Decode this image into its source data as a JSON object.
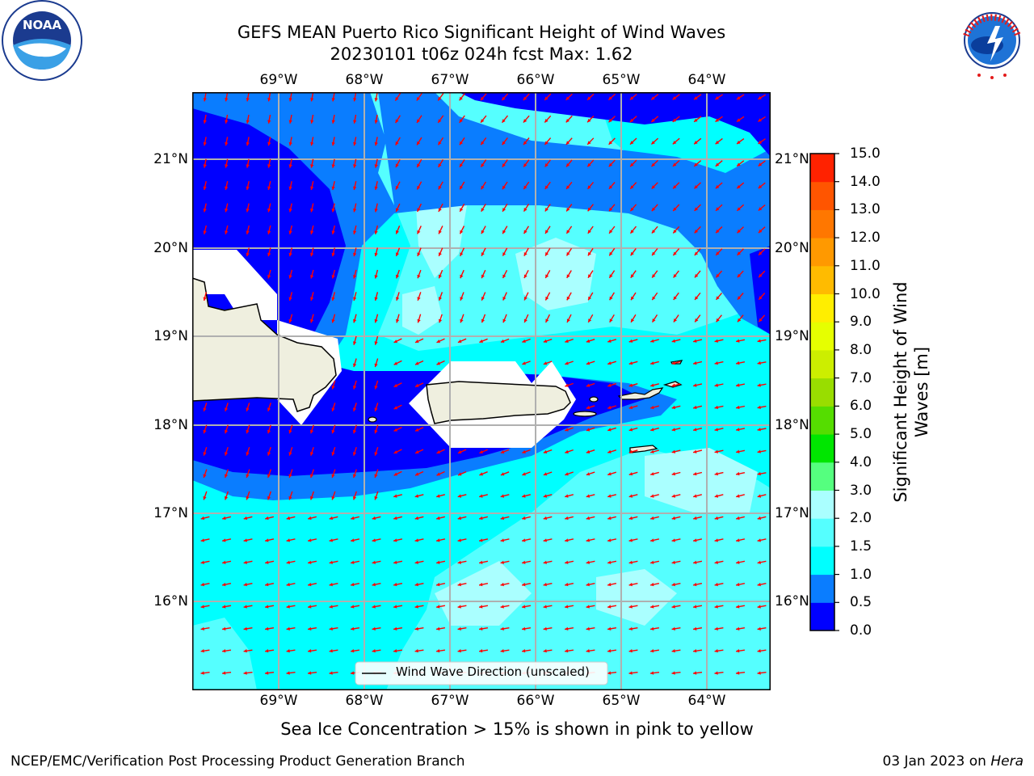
{
  "title": {
    "line1": "GEFS MEAN Puerto Rico Significant Height of Wind Waves",
    "line2": "20230101 t06z 024h fcst   Max: 1.62"
  },
  "map": {
    "lon_labels": [
      "69°W",
      "68°W",
      "67°W",
      "66°W",
      "65°W",
      "64°W"
    ],
    "lat_labels": [
      "21°N",
      "20°N",
      "19°N",
      "18°N",
      "17°N",
      "16°N"
    ],
    "legend_label": "Wind Wave Direction (unscaled)",
    "arrow_color": "#ff0000",
    "land_color": "#efefdf"
  },
  "colorbar": {
    "label": "Significant Height of Wind Waves [m]",
    "ticks": [
      "0.0",
      "0.5",
      "1.0",
      "1.5",
      "2.0",
      "3.0",
      "4.0",
      "5.0",
      "6.0",
      "7.0",
      "8.0",
      "9.0",
      "10.0",
      "11.0",
      "12.0",
      "13.0",
      "14.0",
      "15.0"
    ],
    "colors": [
      "#0000ff",
      "#0a7dff",
      "#00ffff",
      "#55ffff",
      "#aaffff",
      "#55ff7f",
      "#00e600",
      "#55dd00",
      "#99dd00",
      "#ccee00",
      "#e6ff00",
      "#ffee00",
      "#ffbb00",
      "#ff9900",
      "#ff7700",
      "#ff5500",
      "#ff2200"
    ]
  },
  "subcaption": "Sea Ice Concentration > 15% is shown in pink to yellow",
  "footer": {
    "left": "NCEP/EMC/Verification Post Processing Product Generation Branch",
    "right_date": "03 Jan 2023 on ",
    "right_host": "Hera"
  },
  "logos": {
    "noaa": "NOAA",
    "nws": "NATIONAL WEATHER SERVICE"
  }
}
